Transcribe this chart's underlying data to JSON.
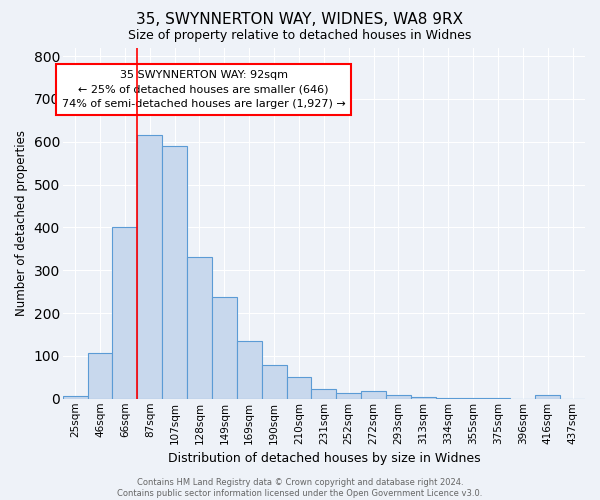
{
  "title": "35, SWYNNERTON WAY, WIDNES, WA8 9RX",
  "subtitle": "Size of property relative to detached houses in Widnes",
  "xlabel": "Distribution of detached houses by size in Widnes",
  "ylabel": "Number of detached properties",
  "bar_labels": [
    "25sqm",
    "46sqm",
    "66sqm",
    "87sqm",
    "107sqm",
    "128sqm",
    "149sqm",
    "169sqm",
    "190sqm",
    "210sqm",
    "231sqm",
    "252sqm",
    "272sqm",
    "293sqm",
    "313sqm",
    "334sqm",
    "355sqm",
    "375sqm",
    "396sqm",
    "416sqm",
    "437sqm"
  ],
  "bar_values": [
    7,
    107,
    400,
    615,
    590,
    330,
    237,
    135,
    78,
    50,
    22,
    14,
    17,
    8,
    4,
    1,
    1,
    1,
    0,
    8,
    0
  ],
  "bar_color": "#c8d8ed",
  "bar_edge_color": "#5b9bd5",
  "annotation_text": "35 SWYNNERTON WAY: 92sqm\n← 25% of detached houses are smaller (646)\n74% of semi-detached houses are larger (1,927) →",
  "ylim": [
    0,
    820
  ],
  "yticks": [
    0,
    100,
    200,
    300,
    400,
    500,
    600,
    700,
    800
  ],
  "footnote": "Contains HM Land Registry data © Crown copyright and database right 2024.\nContains public sector information licensed under the Open Government Licence v3.0.",
  "background_color": "#eef2f8",
  "grid_color": "#ffffff",
  "red_line_index": 3
}
